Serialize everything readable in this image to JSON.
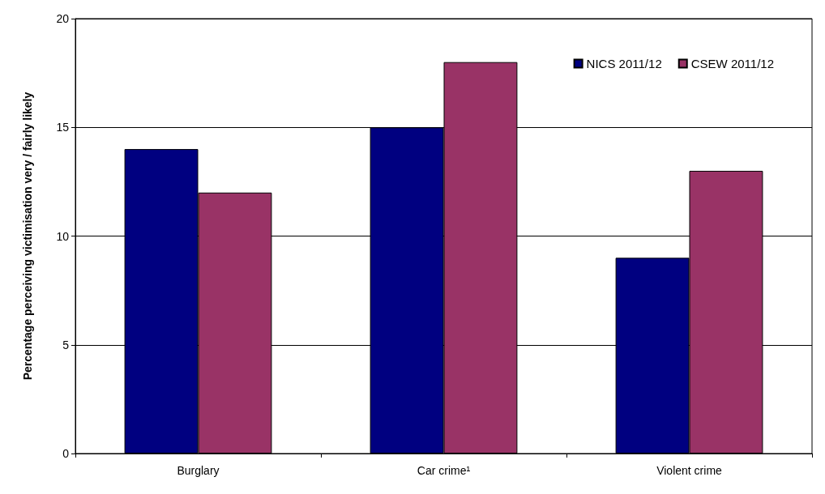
{
  "chart_data": {
    "type": "bar",
    "ylabel": "Percentage perceiving victimisation very / fairly likely",
    "categories": [
      "Burglary",
      "Car crime¹",
      "Violent crime"
    ],
    "series": [
      {
        "name": "NICS 2011/12",
        "color": "#000080",
        "values": [
          14,
          15,
          9
        ]
      },
      {
        "name": "CSEW 2011/12",
        "color": "#993366",
        "values": [
          12,
          18,
          13
        ]
      }
    ],
    "ylim": [
      0,
      20
    ],
    "yticks": [
      0,
      5,
      10,
      15,
      20
    ],
    "grid": "y",
    "legend": "top right"
  }
}
